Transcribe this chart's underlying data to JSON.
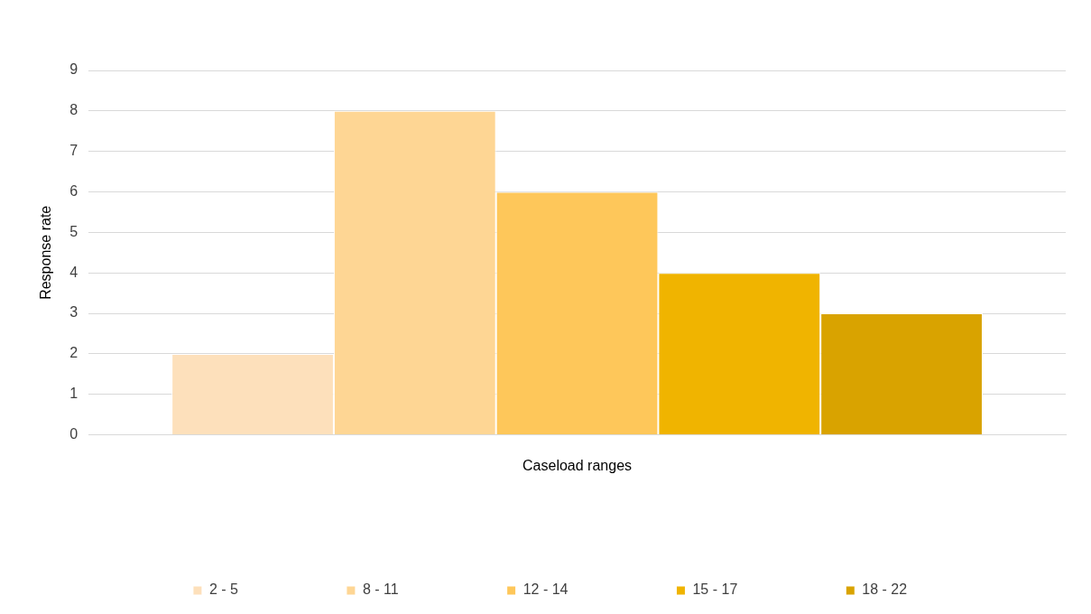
{
  "chart_data": {
    "type": "bar",
    "xlabel": "Caseload ranges",
    "ylabel": "Response rate",
    "categories": [
      null
    ],
    "series": [
      {
        "name": "2 - 5",
        "color": "#fde0bb",
        "values": [
          2
        ]
      },
      {
        "name": "8 - 11",
        "color": "#fed694",
        "values": [
          8
        ]
      },
      {
        "name": "12 - 14",
        "color": "#fec75a",
        "values": [
          6
        ]
      },
      {
        "name": "15 - 17",
        "color": "#f0b400",
        "values": [
          4
        ]
      },
      {
        "name": "18 - 22",
        "color": "#d9a300",
        "values": [
          3
        ]
      }
    ],
    "ylim": [
      0,
      9
    ],
    "yticks": [
      0,
      1,
      2,
      3,
      4,
      5,
      6,
      7,
      8,
      9
    ],
    "grid": "y",
    "legend": "bottom"
  }
}
